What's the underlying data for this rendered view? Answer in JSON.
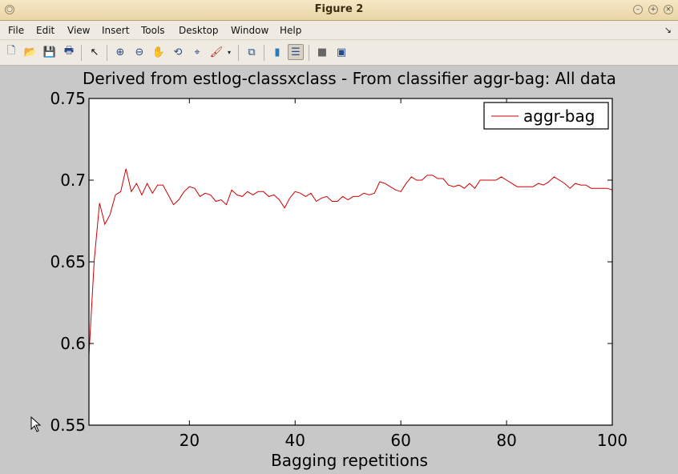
{
  "window": {
    "title": "Figure 2",
    "controls": [
      "minimize",
      "maximize",
      "close"
    ]
  },
  "menu": {
    "items": [
      "File",
      "Edit",
      "View",
      "Insert",
      "Tools",
      "Desktop",
      "Window",
      "Help"
    ]
  },
  "toolbar": {
    "buttons": [
      {
        "name": "new-figure-icon",
        "glyph": "🗋"
      },
      {
        "name": "open-file-icon",
        "glyph": "📂"
      },
      {
        "name": "save-icon",
        "glyph": "💾"
      },
      {
        "name": "print-icon",
        "glyph": "🖶"
      },
      {
        "name": "edit-plot-arrow-icon",
        "glyph": "↖"
      },
      {
        "name": "zoom-in-icon",
        "glyph": "⊕"
      },
      {
        "name": "zoom-out-icon",
        "glyph": "⊖"
      },
      {
        "name": "pan-hand-icon",
        "glyph": "✋"
      },
      {
        "name": "rotate-3d-icon",
        "glyph": "⟲"
      },
      {
        "name": "data-cursor-icon",
        "glyph": "⌖"
      },
      {
        "name": "brush-icon",
        "glyph": "🖌"
      },
      {
        "name": "link-plot-icon",
        "glyph": "⧉"
      },
      {
        "name": "colorbar-icon",
        "glyph": "▮"
      },
      {
        "name": "legend-icon",
        "glyph": "☰"
      },
      {
        "name": "hide-plot-tools-icon",
        "glyph": "■"
      },
      {
        "name": "show-plot-tools-icon",
        "glyph": "▣"
      }
    ]
  },
  "chart_data": {
    "type": "line",
    "title": "Derived from estlog-classxclass - From classifier aggr-bag: All data",
    "xlabel": "Bagging repetitions",
    "ylabel": "",
    "xlim": [
      1,
      100
    ],
    "ylim": [
      0.55,
      0.75
    ],
    "xticks": [
      20,
      40,
      60,
      80,
      100
    ],
    "yticks": [
      0.55,
      0.6,
      0.65,
      0.7,
      0.75
    ],
    "ytick_labels": [
      "0.55",
      "0.6",
      "0.65",
      "0.7",
      "0.75"
    ],
    "grid": false,
    "legend": {
      "position": "top-right",
      "entries": [
        "aggr-bag"
      ]
    },
    "series": [
      {
        "name": "aggr-bag",
        "color": "#cc0000",
        "x": [
          1,
          2,
          3,
          4,
          5,
          6,
          7,
          8,
          9,
          10,
          11,
          12,
          13,
          14,
          15,
          16,
          17,
          18,
          19,
          20,
          21,
          22,
          23,
          24,
          25,
          26,
          27,
          28,
          29,
          30,
          31,
          32,
          33,
          34,
          35,
          36,
          37,
          38,
          39,
          40,
          41,
          42,
          43,
          44,
          45,
          46,
          47,
          48,
          49,
          50,
          51,
          52,
          53,
          54,
          55,
          56,
          57,
          58,
          59,
          60,
          61,
          62,
          63,
          64,
          65,
          66,
          67,
          68,
          69,
          70,
          71,
          72,
          73,
          74,
          75,
          76,
          77,
          78,
          79,
          80,
          81,
          82,
          83,
          84,
          85,
          86,
          87,
          88,
          89,
          90,
          91,
          92,
          93,
          94,
          95,
          96,
          97,
          98,
          99,
          100
        ],
        "values": [
          0.593,
          0.651,
          0.686,
          0.673,
          0.679,
          0.691,
          0.693,
          0.707,
          0.693,
          0.698,
          0.691,
          0.698,
          0.692,
          0.697,
          0.697,
          0.691,
          0.685,
          0.688,
          0.693,
          0.696,
          0.695,
          0.69,
          0.692,
          0.691,
          0.687,
          0.688,
          0.685,
          0.694,
          0.691,
          0.69,
          0.693,
          0.691,
          0.693,
          0.693,
          0.69,
          0.691,
          0.688,
          0.683,
          0.689,
          0.693,
          0.692,
          0.69,
          0.692,
          0.687,
          0.689,
          0.69,
          0.687,
          0.687,
          0.69,
          0.688,
          0.69,
          0.69,
          0.692,
          0.691,
          0.692,
          0.699,
          0.698,
          0.696,
          0.694,
          0.693,
          0.698,
          0.702,
          0.7,
          0.7,
          0.703,
          0.703,
          0.701,
          0.701,
          0.697,
          0.696,
          0.697,
          0.695,
          0.698,
          0.695,
          0.7,
          0.7,
          0.7,
          0.7,
          0.702,
          0.7,
          0.698,
          0.696,
          0.696,
          0.696,
          0.696,
          0.698,
          0.697,
          0.699,
          0.702,
          0.7,
          0.698,
          0.695,
          0.698,
          0.697,
          0.697,
          0.695,
          0.695,
          0.695,
          0.695,
          0.694
        ]
      }
    ]
  }
}
